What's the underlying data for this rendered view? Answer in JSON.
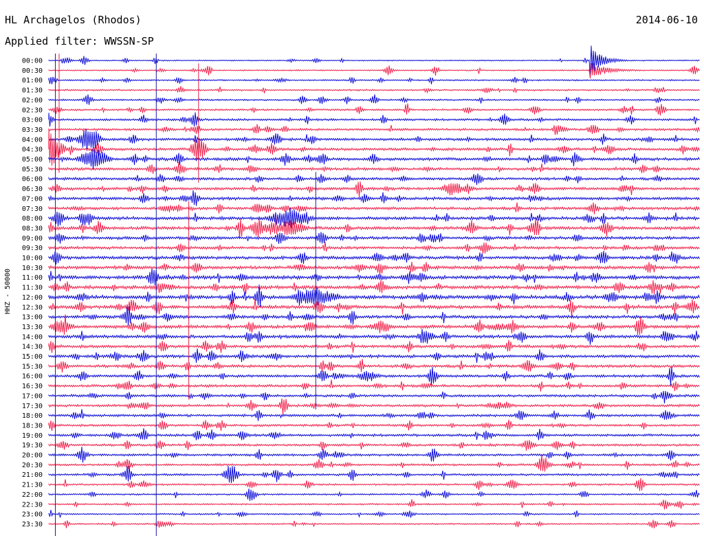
{
  "header": {
    "station": "HL Archagelos (Rhodos)",
    "filter_prefix": "Applied filter:",
    "filter_name": "WWSSN-SP",
    "date": "2014-06-10"
  },
  "colors": {
    "trace_even": "#0a0ad6",
    "trace_odd": "#f0204a",
    "marker_line": "#1a1aa0",
    "marker_line_red": "#e0204a"
  },
  "chart_data": {
    "type": "line",
    "title": "HL Archagelos (Rhodos)",
    "subtitle": "Applied filter: WWSSN-SP",
    "ylabel": "HHZ - 50000",
    "xlabel": "",
    "grid": false,
    "row_labels": [
      "00:00",
      "00:30",
      "01:00",
      "01:30",
      "02:00",
      "02:30",
      "03:00",
      "03:30",
      "04:00",
      "04:30",
      "05:00",
      "05:30",
      "06:00",
      "06:30",
      "07:00",
      "07:30",
      "08:00",
      "08:30",
      "09:00",
      "09:30",
      "10:00",
      "10:30",
      "11:00",
      "11:30",
      "12:00",
      "12:30",
      "13:00",
      "13:30",
      "14:00",
      "14:30",
      "15:00",
      "15:30",
      "16:00",
      "16:30",
      "17:00",
      "17:30",
      "18:00",
      "18:30",
      "19:00",
      "19:30",
      "20:00",
      "20:30",
      "21:00",
      "21:30",
      "22:00",
      "22:30",
      "23:00",
      "23:30"
    ],
    "row_minutes": 30,
    "noise_level": [
      0.6,
      0.7,
      0.8,
      0.9,
      0.9,
      1.0,
      1.2,
      1.3,
      1.5,
      1.6,
      1.7,
      1.6,
      1.5,
      1.6,
      1.7,
      1.6,
      1.8,
      1.9,
      1.7,
      1.6,
      1.8,
      1.9,
      2.0,
      2.0,
      2.1,
      2.0,
      1.8,
      1.9,
      1.8,
      1.7,
      1.7,
      1.6,
      1.5,
      1.5,
      1.4,
      1.4,
      1.4,
      1.3,
      1.4,
      1.3,
      1.3,
      1.2,
      1.2,
      1.0,
      0.9,
      0.9,
      0.8,
      0.8
    ],
    "events": [
      {
        "row": 0,
        "pos": 0.83,
        "amp": 28,
        "width": 0.015,
        "kind": "quake"
      },
      {
        "row": 1,
        "pos": 0.83,
        "amp": 14,
        "width": 0.02,
        "kind": "quake"
      },
      {
        "row": 2,
        "pos": 0.2,
        "amp": 5,
        "width": 0.008
      },
      {
        "row": 4,
        "pos": 0.06,
        "amp": 8,
        "width": 0.01
      },
      {
        "row": 4,
        "pos": 0.5,
        "amp": 8,
        "width": 0.008
      },
      {
        "row": 5,
        "pos": 0.55,
        "amp": 12,
        "width": 0.005
      },
      {
        "row": 5,
        "pos": 0.94,
        "amp": 10,
        "width": 0.01
      },
      {
        "row": 6,
        "pos": 0.0,
        "amp": 9,
        "width": 0.01
      },
      {
        "row": 6,
        "pos": 0.7,
        "amp": 9,
        "width": 0.01
      },
      {
        "row": 8,
        "pos": 0.06,
        "amp": 18,
        "width": 0.02
      },
      {
        "row": 9,
        "pos": 0.0,
        "amp": 22,
        "width": 0.03
      },
      {
        "row": 9,
        "pos": 0.23,
        "amp": 24,
        "width": 0.015
      },
      {
        "row": 10,
        "pos": 0.07,
        "amp": 16,
        "width": 0.03
      },
      {
        "row": 13,
        "pos": 0.62,
        "amp": 10,
        "width": 0.02
      },
      {
        "row": 16,
        "pos": 0.37,
        "amp": 14,
        "width": 0.04
      },
      {
        "row": 17,
        "pos": 0.37,
        "amp": 12,
        "width": 0.03
      },
      {
        "row": 22,
        "pos": 0.16,
        "amp": 16,
        "width": 0.01
      },
      {
        "row": 24,
        "pos": 0.41,
        "amp": 14,
        "width": 0.04
      },
      {
        "row": 27,
        "pos": 0.02,
        "amp": 10,
        "width": 0.02
      },
      {
        "row": 27,
        "pos": 0.51,
        "amp": 9,
        "width": 0.02
      },
      {
        "row": 32,
        "pos": 0.49,
        "amp": 8,
        "width": 0.02
      },
      {
        "row": 41,
        "pos": 0.76,
        "amp": 12,
        "width": 0.015
      },
      {
        "row": 42,
        "pos": 0.28,
        "amp": 14,
        "width": 0.015
      },
      {
        "row": 42,
        "pos": 0.35,
        "amp": 10,
        "width": 0.01
      }
    ],
    "marker_lines": [
      {
        "pos": 0.01,
        "from_row": 0,
        "to_row": 47
      },
      {
        "pos": 0.165,
        "from_row": 0,
        "to_row": 47
      },
      {
        "pos": 0.0,
        "from_row": 0,
        "to_row": 10,
        "color": "red"
      },
      {
        "pos": 0.23,
        "from_row": 1,
        "to_row": 11,
        "color": "red"
      },
      {
        "pos": 0.41,
        "from_row": 12,
        "to_row": 34
      },
      {
        "pos": 0.215,
        "from_row": 15,
        "to_row": 33,
        "color": "red"
      }
    ]
  }
}
